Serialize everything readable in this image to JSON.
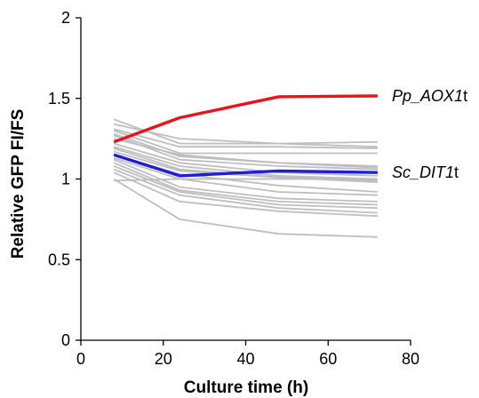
{
  "chart_data": {
    "type": "line",
    "xlabel": "Culture time (h)",
    "ylabel": "Relative GFP FI/FS",
    "xlim": [
      0,
      80
    ],
    "ylim": [
      0,
      2
    ],
    "xticks": [
      "0",
      "20",
      "40",
      "60",
      "80"
    ],
    "yticks": [
      "0",
      "0.5",
      "1",
      "1.5",
      "2"
    ],
    "x": [
      8,
      24,
      48,
      72
    ],
    "grid": false,
    "legend": "none",
    "highlight_series": [
      {
        "name": "Pp_AOX1t",
        "label_italic": "Pp_AOX1",
        "label_plain": "t",
        "color": "#e8141b",
        "values": [
          1.23,
          1.38,
          1.51,
          1.515
        ]
      },
      {
        "name": "Sc_DIT1t",
        "label_italic": "Sc_DIT1",
        "label_plain": "t",
        "color": "#1f1ed6",
        "values": [
          1.15,
          1.02,
          1.05,
          1.04
        ]
      }
    ],
    "background_color": "#bebebe",
    "background_series": [
      [
        1.37,
        1.22,
        1.22,
        1.23
      ],
      [
        1.34,
        1.25,
        1.22,
        1.2
      ],
      [
        1.31,
        1.2,
        1.2,
        1.19
      ],
      [
        1.3,
        1.16,
        1.16,
        1.16
      ],
      [
        1.28,
        1.14,
        1.1,
        1.08
      ],
      [
        1.27,
        1.12,
        1.08,
        1.06
      ],
      [
        1.25,
        1.15,
        1.1,
        1.07
      ],
      [
        1.22,
        1.1,
        1.04,
        1.02
      ],
      [
        1.2,
        1.08,
        1.02,
        1.0
      ],
      [
        1.19,
        1.06,
        1.01,
        0.99
      ],
      [
        1.17,
        1.05,
        1.01,
        0.98
      ],
      [
        1.15,
        1.03,
        0.96,
        0.92
      ],
      [
        1.13,
        1.0,
        0.92,
        0.9
      ],
      [
        1.12,
        0.95,
        0.88,
        0.86
      ],
      [
        1.1,
        0.93,
        0.86,
        0.84
      ],
      [
        1.08,
        0.92,
        0.84,
        0.82
      ],
      [
        1.06,
        0.9,
        0.82,
        0.79
      ],
      [
        1.04,
        0.86,
        0.8,
        0.77
      ],
      [
        1.0,
        0.75,
        0.66,
        0.64
      ],
      [
        0.99,
        1.0,
        1.0,
        1.0
      ]
    ]
  }
}
